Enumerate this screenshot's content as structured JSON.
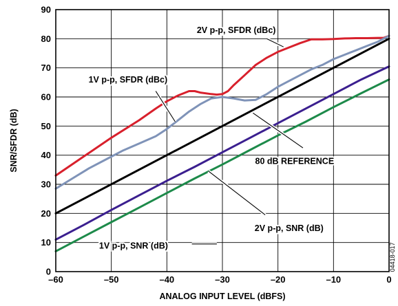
{
  "figure_id": "04418-017",
  "chart_data": {
    "type": "line",
    "title": "",
    "xlabel": "ANALOG INPUT LEVEL (dBFS)",
    "ylabel": "SNR/SFDR (dB)",
    "xlim": [
      -60,
      0
    ],
    "ylim": [
      0,
      90
    ],
    "x_ticks": [
      -60,
      -50,
      -40,
      -30,
      -20,
      -10,
      0
    ],
    "x_tick_labels": [
      "–60",
      "–50",
      "–40",
      "–30",
      "–20",
      "–10",
      "0"
    ],
    "y_ticks": [
      0,
      10,
      20,
      30,
      40,
      50,
      60,
      70,
      80,
      90
    ],
    "y_tick_labels": [
      "0",
      "10",
      "20",
      "30",
      "40",
      "50",
      "60",
      "70",
      "80",
      "90"
    ],
    "grid": true,
    "legend": "none",
    "series": [
      {
        "name": "2V p-p, SFDR (dBc)",
        "color": "#d8202c",
        "points": [
          [
            -60,
            33
          ],
          [
            -55,
            39.5
          ],
          [
            -50,
            46
          ],
          [
            -45,
            52
          ],
          [
            -42,
            56
          ],
          [
            -40,
            58.5
          ],
          [
            -38,
            60.5
          ],
          [
            -36,
            62
          ],
          [
            -35,
            62
          ],
          [
            -34,
            61.5
          ],
          [
            -32,
            61
          ],
          [
            -31,
            60.8
          ],
          [
            -30,
            61
          ],
          [
            -29,
            62
          ],
          [
            -28,
            64
          ],
          [
            -26,
            67.5
          ],
          [
            -24,
            71
          ],
          [
            -22,
            73.5
          ],
          [
            -20,
            75.5
          ],
          [
            -18,
            77
          ],
          [
            -16,
            78.5
          ],
          [
            -14,
            79.8
          ],
          [
            -12,
            79.8
          ],
          [
            -10,
            79.9
          ],
          [
            -8,
            80.1
          ],
          [
            -6,
            80.2
          ],
          [
            -4,
            80.2
          ],
          [
            -2,
            80.3
          ],
          [
            -1,
            80.3
          ],
          [
            0,
            81
          ]
        ]
      },
      {
        "name": "1V p-p, SFDR (dBc)",
        "color": "#7f93b8",
        "points": [
          [
            -60,
            28.5
          ],
          [
            -57,
            32
          ],
          [
            -54,
            35.5
          ],
          [
            -51,
            38.5
          ],
          [
            -48,
            41.5
          ],
          [
            -45,
            44
          ],
          [
            -42,
            46.5
          ],
          [
            -40,
            49
          ],
          [
            -38,
            52
          ],
          [
            -36,
            55
          ],
          [
            -34,
            57.5
          ],
          [
            -32,
            59.5
          ],
          [
            -30,
            60
          ],
          [
            -28,
            59.5
          ],
          [
            -26,
            58.8
          ],
          [
            -24,
            59
          ],
          [
            -22,
            61
          ],
          [
            -20,
            63.5
          ],
          [
            -18,
            65.5
          ],
          [
            -16,
            67.5
          ],
          [
            -14,
            69.5
          ],
          [
            -12,
            71
          ],
          [
            -10,
            73
          ],
          [
            -8,
            74.5
          ],
          [
            -6,
            76
          ],
          [
            -4,
            77.5
          ],
          [
            -2,
            79
          ],
          [
            -1,
            80
          ],
          [
            0,
            81
          ]
        ]
      },
      {
        "name": "80 dB REFERENCE",
        "color": "#000000",
        "points": [
          [
            -60,
            20
          ],
          [
            0,
            80
          ]
        ]
      },
      {
        "name": "2V p-p, SNR (dB)",
        "color": "#3b1f8f",
        "points": [
          [
            -60,
            11
          ],
          [
            -55,
            16
          ],
          [
            -50,
            21.2
          ],
          [
            -45,
            26.2
          ],
          [
            -40,
            31.2
          ],
          [
            -35,
            36
          ],
          [
            -30,
            41
          ],
          [
            -25,
            46
          ],
          [
            -20,
            51
          ],
          [
            -15,
            56
          ],
          [
            -10,
            61
          ],
          [
            -5,
            66
          ],
          [
            0,
            70.5
          ]
        ]
      },
      {
        "name": "1V p-p, SNR (dB)",
        "color": "#1d8a4a",
        "points": [
          [
            -60,
            7
          ],
          [
            -55,
            12
          ],
          [
            -50,
            17
          ],
          [
            -45,
            22
          ],
          [
            -40,
            27
          ],
          [
            -35,
            32
          ],
          [
            -30,
            36.8
          ],
          [
            -25,
            41.8
          ],
          [
            -20,
            46.8
          ],
          [
            -15,
            51.5
          ],
          [
            -10,
            56.5
          ],
          [
            -5,
            61.3
          ],
          [
            0,
            66
          ]
        ]
      }
    ],
    "annotations": [
      {
        "text": "2V p-p, SFDR (dBc)",
        "label_at": [
          -27.5,
          83
        ],
        "pointer": [
          [
            -22,
            80
          ],
          [
            -19,
            77.2
          ]
        ]
      },
      {
        "text": "1V p-p, SFDR (dBc)",
        "label_at": [
          -47,
          66
        ],
        "pointer": [
          [
            -42,
            62
          ],
          [
            -38.5,
            51.5
          ]
        ]
      },
      {
        "text": "80 dB REFERENCE",
        "label_at": [
          -17,
          38
        ],
        "pointer": [
          [
            -15.5,
            42.5
          ],
          [
            -24.5,
            54.5
          ]
        ]
      },
      {
        "text": "2V p-p, SNR (dB)",
        "label_at": [
          -18,
          15
        ],
        "pointer": [
          [
            -22.3,
            19.5
          ],
          [
            -32.5,
            34.5
          ]
        ]
      },
      {
        "text": "1V p-p, SNR (dB)",
        "label_at": [
          -46,
          9
        ],
        "pointer": [
          [
            -35.5,
            9.5
          ],
          [
            -31,
            9.5
          ]
        ]
      }
    ]
  }
}
